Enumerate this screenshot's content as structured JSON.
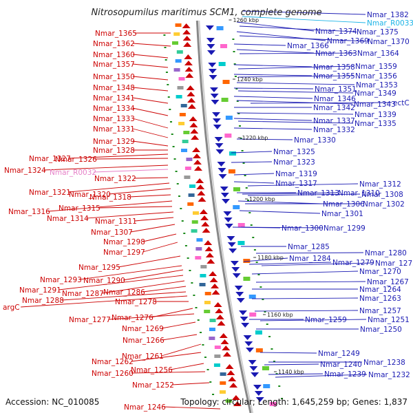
{
  "title": "Nitrosopumilus maritimus SCM1, complete genome",
  "accession": "Accession: NC_010085",
  "summary": "Topology: circular; Length: 1,645,259 bp; Genes: 1,837",
  "colors": {
    "left": "#cc0000",
    "right": "#1a1ab3",
    "rna_right": "#1ab3e6",
    "rna_left": "#e680c8",
    "backbone": "#888888"
  },
  "kbp_ticks": [
    "1260 kbp",
    "1240 kbp",
    "1220 kbp",
    "1200 kbp",
    "1180 kbp",
    "1160 kbp",
    "1140 kbp"
  ],
  "left_labels": [
    {
      "text": "Nmar_1365",
      "kind": "gene"
    },
    {
      "text": "Nmar_1362",
      "kind": "gene"
    },
    {
      "text": "Nmar_1360",
      "kind": "gene"
    },
    {
      "text": "Nmar_1357",
      "kind": "gene"
    },
    {
      "text": "Nmar_1350",
      "kind": "gene"
    },
    {
      "text": "Nmar_1348",
      "kind": "gene"
    },
    {
      "text": "Nmar_1341",
      "kind": "gene"
    },
    {
      "text": "Nmar_1334",
      "kind": "gene"
    },
    {
      "text": "Nmar_1333",
      "kind": "gene"
    },
    {
      "text": "Nmar_1331",
      "kind": "gene"
    },
    {
      "text": "Nmar_1329",
      "kind": "gene"
    },
    {
      "text": "Nmar_1328",
      "kind": "gene"
    },
    {
      "text": "Nmar_1327",
      "kind": "gene"
    },
    {
      "text": "Nmar_1326",
      "kind": "gene"
    },
    {
      "text": "Nmar_1324",
      "kind": "gene"
    },
    {
      "text": "Nmar_R0032",
      "kind": "rna"
    },
    {
      "text": "Nmar_1322",
      "kind": "gene"
    },
    {
      "text": "Nmar_1321",
      "kind": "gene"
    },
    {
      "text": "Nmar_1320",
      "kind": "gene"
    },
    {
      "text": "Nmar_1318",
      "kind": "gene"
    },
    {
      "text": "Nmar_1316",
      "kind": "gene"
    },
    {
      "text": "Nmar_1315",
      "kind": "gene"
    },
    {
      "text": "Nmar_1314",
      "kind": "gene"
    },
    {
      "text": "Nmar_1311",
      "kind": "gene"
    },
    {
      "text": "Nmar_1307",
      "kind": "gene"
    },
    {
      "text": "Nmar_1298",
      "kind": "gene"
    },
    {
      "text": "Nmar_1297",
      "kind": "gene"
    },
    {
      "text": "Nmar_1295",
      "kind": "gene"
    },
    {
      "text": "Nmar_1293",
      "kind": "gene"
    },
    {
      "text": "Nmar_1290",
      "kind": "gene"
    },
    {
      "text": "Nmar_1291",
      "kind": "gene"
    },
    {
      "text": "Nmar_1287",
      "kind": "gene"
    },
    {
      "text": "Nmar_1286",
      "kind": "gene"
    },
    {
      "text": "Nmar_1288",
      "kind": "gene"
    },
    {
      "text": "argC",
      "kind": "gene"
    },
    {
      "text": "Nmar_1278",
      "kind": "gene"
    },
    {
      "text": "Nmar_1276",
      "kind": "gene"
    },
    {
      "text": "Nmar_1277",
      "kind": "gene"
    },
    {
      "text": "Nmar_1269",
      "kind": "gene"
    },
    {
      "text": "Nmar_1266",
      "kind": "gene"
    },
    {
      "text": "Nmar_1261",
      "kind": "gene"
    },
    {
      "text": "Nmar_1262",
      "kind": "gene"
    },
    {
      "text": "Nmar_1256",
      "kind": "gene"
    },
    {
      "text": "Nmar_1260",
      "kind": "gene"
    },
    {
      "text": "Nmar_1252",
      "kind": "gene"
    },
    {
      "text": "Nmar_1246",
      "kind": "gene"
    }
  ],
  "right_labels": [
    {
      "text": "Nmar_1382",
      "kind": "gene"
    },
    {
      "text": "Nmar_R0033",
      "kind": "rna"
    },
    {
      "text": "Nmar_1374",
      "kind": "gene"
    },
    {
      "text": "Nmar_1375",
      "kind": "gene"
    },
    {
      "text": "Nmar_1369",
      "kind": "gene"
    },
    {
      "text": "Nmar_1370",
      "kind": "gene"
    },
    {
      "text": "Nmar_1366",
      "kind": "gene"
    },
    {
      "text": "Nmar_1363",
      "kind": "gene"
    },
    {
      "text": "Nmar_1364",
      "kind": "gene"
    },
    {
      "text": "Nmar_1358",
      "kind": "gene"
    },
    {
      "text": "Nmar_1359",
      "kind": "gene"
    },
    {
      "text": "Nmar_1355",
      "kind": "gene"
    },
    {
      "text": "Nmar_1356",
      "kind": "gene"
    },
    {
      "text": "Nmar_1353",
      "kind": "gene"
    },
    {
      "text": "Nmar_1351",
      "kind": "gene"
    },
    {
      "text": "Nmar_1349",
      "kind": "gene"
    },
    {
      "text": "Nmar_1346",
      "kind": "gene"
    },
    {
      "text": "Nmar_1343",
      "kind": "gene"
    },
    {
      "text": "ectC",
      "kind": "gene"
    },
    {
      "text": "Nmar_1342",
      "kind": "gene"
    },
    {
      "text": "Nmar_1339",
      "kind": "gene"
    },
    {
      "text": "Nmar_1337",
      "kind": "gene"
    },
    {
      "text": "Nmar_1335",
      "kind": "gene"
    },
    {
      "text": "Nmar_1332",
      "kind": "gene"
    },
    {
      "text": "Nmar_1330",
      "kind": "gene"
    },
    {
      "text": "Nmar_1325",
      "kind": "gene"
    },
    {
      "text": "Nmar_1323",
      "kind": "gene"
    },
    {
      "text": "Nmar_1319",
      "kind": "gene"
    },
    {
      "text": "Nmar_1317",
      "kind": "gene"
    },
    {
      "text": "Nmar_1312",
      "kind": "gene"
    },
    {
      "text": "Nmar_1313",
      "kind": "gene"
    },
    {
      "text": "Nmar_1310",
      "kind": "gene"
    },
    {
      "text": "Nmar_1308",
      "kind": "gene"
    },
    {
      "text": "Nmar_1306",
      "kind": "gene"
    },
    {
      "text": "Nmar_1302",
      "kind": "gene"
    },
    {
      "text": "Nmar_1301",
      "kind": "gene"
    },
    {
      "text": "Nmar_1300",
      "kind": "gene"
    },
    {
      "text": "Nmar_1299",
      "kind": "gene"
    },
    {
      "text": "Nmar_1285",
      "kind": "gene"
    },
    {
      "text": "Nmar_1284",
      "kind": "gene"
    },
    {
      "text": "Nmar_1280",
      "kind": "gene"
    },
    {
      "text": "Nmar_1279",
      "kind": "gene"
    },
    {
      "text": "Nmar_1273",
      "kind": "gene"
    },
    {
      "text": "Nmar_1270",
      "kind": "gene"
    },
    {
      "text": "Nmar_1267",
      "kind": "gene"
    },
    {
      "text": "Nmar_1264",
      "kind": "gene"
    },
    {
      "text": "Nmar_1263",
      "kind": "gene"
    },
    {
      "text": "Nmar_1257",
      "kind": "gene"
    },
    {
      "text": "Nmar_1259",
      "kind": "gene"
    },
    {
      "text": "Nmar_1251",
      "kind": "gene"
    },
    {
      "text": "Nmar_1250",
      "kind": "gene"
    },
    {
      "text": "Nmar_1249",
      "kind": "gene"
    },
    {
      "text": "Nmar_1238",
      "kind": "gene"
    },
    {
      "text": "Nmar_1240",
      "kind": "gene"
    },
    {
      "text": "Nmar_1239",
      "kind": "gene"
    },
    {
      "text": "Nmar_1232",
      "kind": "gene"
    }
  ]
}
